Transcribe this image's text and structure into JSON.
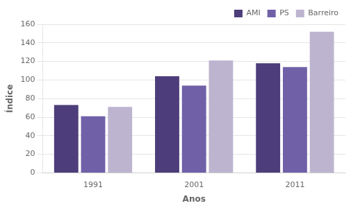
{
  "chart_data": {
    "type": "bar",
    "categories": [
      "1991",
      "2001",
      "2011"
    ],
    "series": [
      {
        "name": "AMI",
        "color": "#4d3d7a",
        "values": [
          73,
          104,
          118
        ]
      },
      {
        "name": "PS",
        "color": "#7060a8",
        "values": [
          61,
          94,
          114
        ]
      },
      {
        "name": "Barreiro",
        "color": "#bdb5d0",
        "values": [
          71,
          121,
          152
        ]
      }
    ],
    "xlabel": "Anos",
    "ylabel": "Índice",
    "ylim": [
      0,
      160
    ],
    "yticks": [
      0,
      20,
      40,
      60,
      80,
      100,
      120,
      140,
      160
    ],
    "grid": true,
    "legend": "upper right"
  }
}
